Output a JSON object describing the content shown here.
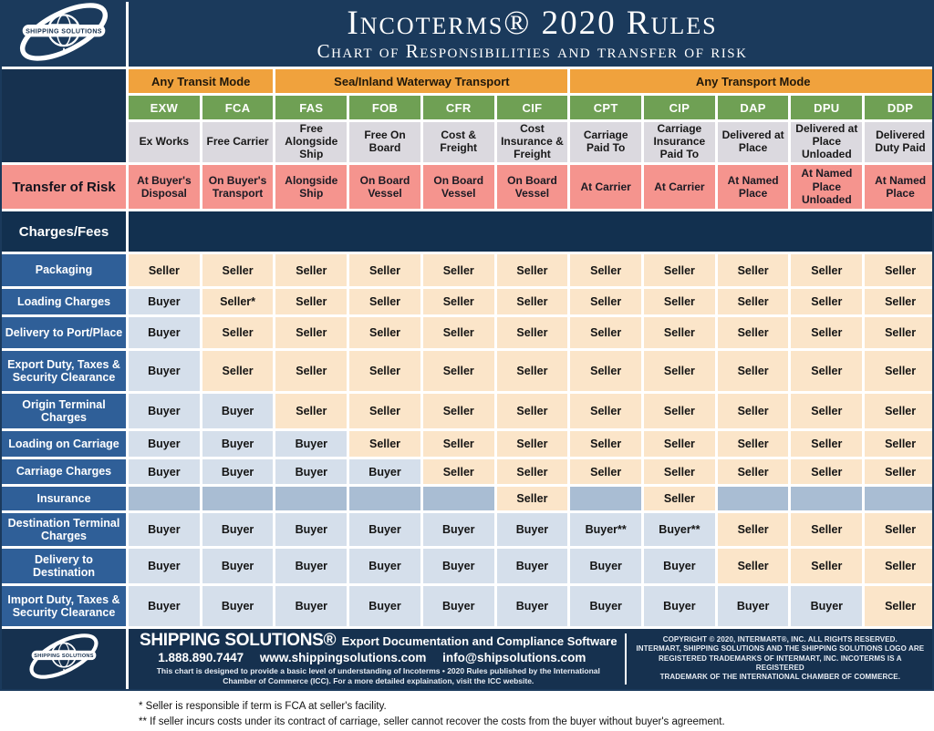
{
  "header": {
    "logo_text": "SHIPPING SOLUTIONS",
    "title": "Incoterms® 2020 Rules",
    "subtitle": "Chart of Responsibilities and transfer of risk"
  },
  "transport_groups": [
    {
      "label": "Any Transit Mode"
    },
    {
      "label": "Sea/Inland Waterway Transport"
    },
    {
      "label": "Any Transport Mode"
    }
  ],
  "columns": [
    {
      "code": "EXW",
      "name": "Ex Works",
      "risk": "At Buyer's Disposal"
    },
    {
      "code": "FCA",
      "name": "Free Carrier",
      "risk": "On Buyer's Transport"
    },
    {
      "code": "FAS",
      "name": "Free Alongside Ship",
      "risk": "Alongside Ship"
    },
    {
      "code": "FOB",
      "name": "Free On Board",
      "risk": "On Board Vessel"
    },
    {
      "code": "CFR",
      "name": "Cost & Freight",
      "risk": "On Board Vessel"
    },
    {
      "code": "CIF",
      "name": "Cost Insurance & Freight",
      "risk": "On Board Vessel"
    },
    {
      "code": "CPT",
      "name": "Carriage Paid To",
      "risk": "At Carrier"
    },
    {
      "code": "CIP",
      "name": "Carriage Insurance Paid To",
      "risk": "At Carrier"
    },
    {
      "code": "DAP",
      "name": "Delivered at Place",
      "risk": "At Named Place"
    },
    {
      "code": "DPU",
      "name": "Delivered at Place Unloaded",
      "risk": "At Named Place Unloaded"
    },
    {
      "code": "DDP",
      "name": "Delivered Duty Paid",
      "risk": "At Named Place"
    }
  ],
  "risk_label": "Transfer of Risk",
  "charges_label": "Charges/Fees",
  "table": {
    "rows": [
      {
        "label": "Packaging",
        "cells": [
          "Seller",
          "Seller",
          "Seller",
          "Seller",
          "Seller",
          "Seller",
          "Seller",
          "Seller",
          "Seller",
          "Seller",
          "Seller"
        ]
      },
      {
        "label": "Loading Charges",
        "cells": [
          "Buyer",
          "Seller*",
          "Seller",
          "Seller",
          "Seller",
          "Seller",
          "Seller",
          "Seller",
          "Seller",
          "Seller",
          "Seller"
        ]
      },
      {
        "label": "Delivery to Port/Place",
        "cells": [
          "Buyer",
          "Seller",
          "Seller",
          "Seller",
          "Seller",
          "Seller",
          "Seller",
          "Seller",
          "Seller",
          "Seller",
          "Seller"
        ]
      },
      {
        "label": "Export Duty, Taxes & Security Clearance",
        "cells": [
          "Buyer",
          "Seller",
          "Seller",
          "Seller",
          "Seller",
          "Seller",
          "Seller",
          "Seller",
          "Seller",
          "Seller",
          "Seller"
        ]
      },
      {
        "label": "Origin Terminal Charges",
        "cells": [
          "Buyer",
          "Buyer",
          "Seller",
          "Seller",
          "Seller",
          "Seller",
          "Seller",
          "Seller",
          "Seller",
          "Seller",
          "Seller"
        ]
      },
      {
        "label": "Loading on Carriage",
        "cells": [
          "Buyer",
          "Buyer",
          "Buyer",
          "Seller",
          "Seller",
          "Seller",
          "Seller",
          "Seller",
          "Seller",
          "Seller",
          "Seller"
        ]
      },
      {
        "label": "Carriage Charges",
        "cells": [
          "Buyer",
          "Buyer",
          "Buyer",
          "Buyer",
          "Seller",
          "Seller",
          "Seller",
          "Seller",
          "Seller",
          "Seller",
          "Seller"
        ]
      },
      {
        "label": "Insurance",
        "cells": [
          "",
          "",
          "",
          "",
          "",
          "Seller",
          "",
          "Seller",
          "",
          "",
          ""
        ]
      },
      {
        "label": "Destination Terminal Charges",
        "cells": [
          "Buyer",
          "Buyer",
          "Buyer",
          "Buyer",
          "Buyer",
          "Buyer",
          "Buyer**",
          "Buyer**",
          "Seller",
          "Seller",
          "Seller"
        ]
      },
      {
        "label": "Delivery to Destination",
        "cells": [
          "Buyer",
          "Buyer",
          "Buyer",
          "Buyer",
          "Buyer",
          "Buyer",
          "Buyer",
          "Buyer",
          "Seller",
          "Seller",
          "Seller"
        ]
      },
      {
        "label": "Import Duty, Taxes & Security Clearance",
        "cells": [
          "Buyer",
          "Buyer",
          "Buyer",
          "Buyer",
          "Buyer",
          "Buyer",
          "Buyer",
          "Buyer",
          "Buyer",
          "Buyer",
          "Seller"
        ]
      }
    ]
  },
  "footer": {
    "brand": "SHIPPING SOLUTIONS®",
    "tagline": "Export Documentation and Compliance Software",
    "phone": "1.888.890.7447",
    "website": "www.shippingsolutions.com",
    "email": "info@shipsolutions.com",
    "fine_print": "This chart is designed to provide a basic level of understanding of Incoterms • 2020 Rules published by the International Chamber of Commerce (ICC). For a more detailed explaination, visit the ICC website.",
    "copyright_lines": [
      "COPYRIGHT © 2020, INTERMART®, INC. ALL RIGHTS RESERVED.",
      "INTERMART, SHIPPING SOLUTIONS AND THE SHIPPING SOLUTIONS LOGO ARE",
      "REGISTERED TRADEMARKS OF INTERMART, INC. INCOTERMS IS A REGISTERED",
      "TRADEMARK OF THE INTERNATIONAL CHAMBER OF COMMERCE."
    ]
  },
  "footnotes": [
    "* Seller is responsible if term is FCA at seller's facility.",
    "** If seller incurs costs under its contract of carriage, seller cannot recover the costs from the buyer without buyer's agreement."
  ],
  "colors": {
    "header_navy": "#1b3a5c",
    "section_navy": "#16314f",
    "group_orange": "#f0a23d",
    "code_green": "#6fa054",
    "name_gray": "#dbd9df",
    "risk_pink": "#f5948e",
    "row_label_blue": "#2f5f98",
    "seller_bg": "#fbe5c9",
    "buyer_bg": "#d5dfeb",
    "insurance_empty_bg": "#a9bdd3"
  }
}
